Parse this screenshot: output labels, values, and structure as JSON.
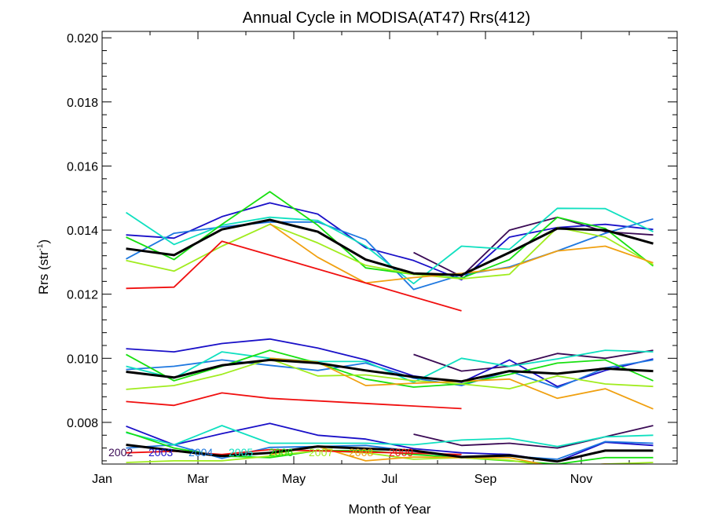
{
  "chart_data": {
    "type": "line",
    "title": "Annual Cycle in MODISA(AT47) Rrs(412)",
    "xlabel": "Month of Year",
    "ylabel_main": "Rrs (str",
    "ylabel_sup": "-1",
    "ylabel_close": ")",
    "xlim": [
      0,
      12
    ],
    "ylim": [
      0.0067,
      0.0202
    ],
    "x_ticks": [
      {
        "x": 0,
        "label": "Jan"
      },
      {
        "x": 2,
        "label": "Mar"
      },
      {
        "x": 4,
        "label": "May"
      },
      {
        "x": 6,
        "label": "Jul"
      },
      {
        "x": 8,
        "label": "Sep"
      },
      {
        "x": 10,
        "label": "Nov"
      }
    ],
    "y_ticks": [
      {
        "y": 0.008,
        "label": "0.008"
      },
      {
        "y": 0.01,
        "label": "0.010"
      },
      {
        "y": 0.012,
        "label": "0.012"
      },
      {
        "y": 0.014,
        "label": "0.014"
      },
      {
        "y": 0.016,
        "label": "0.016"
      },
      {
        "y": 0.018,
        "label": "0.018"
      },
      {
        "y": 0.02,
        "label": "0.020"
      }
    ],
    "x": [
      0.5,
      1.5,
      2.5,
      3.5,
      4.5,
      5.5,
      6.5,
      7.5,
      8.5,
      9.5,
      10.5,
      11.5
    ],
    "legend_placement": "bottom-left, inside plot",
    "series": [
      {
        "name": "2002",
        "color": "#3a0a55",
        "groups": [
          [
            null,
            null,
            null,
            null,
            null,
            null,
            0.0133,
            0.01255,
            0.014,
            0.0144,
            0.01395,
            0.01385
          ],
          [
            null,
            null,
            null,
            null,
            null,
            null,
            0.01012,
            0.0096,
            0.00975,
            0.01015,
            0.01,
            0.01025
          ],
          [
            null,
            null,
            null,
            null,
            null,
            null,
            0.00763,
            0.00728,
            0.00735,
            0.0072,
            0.00755,
            0.0079
          ]
        ]
      },
      {
        "name": "2003",
        "color": "#1a10c8",
        "groups": [
          [
            0.01385,
            0.01375,
            0.01442,
            0.01485,
            0.0145,
            0.01345,
            0.01305,
            0.01245,
            0.01378,
            0.01408,
            0.01418,
            0.01402
          ],
          [
            0.0103,
            0.0102,
            0.01046,
            0.0106,
            0.01032,
            0.00995,
            0.00945,
            0.00925,
            0.00995,
            0.00912,
            0.00962,
            0.00998
          ],
          [
            0.00788,
            0.0073,
            0.00765,
            0.00797,
            0.0076,
            0.00748,
            0.00718,
            0.00705,
            0.007,
            0.00677,
            0.00738,
            0.00728
          ]
        ]
      },
      {
        "name": "2004",
        "color": "#1e78e0",
        "groups": [
          [
            0.0131,
            0.0139,
            0.0141,
            0.01425,
            0.01425,
            0.0137,
            0.01215,
            0.0126,
            0.01285,
            0.01335,
            0.0139,
            0.01435
          ],
          [
            0.00965,
            0.00975,
            0.00995,
            0.00978,
            0.00962,
            0.00985,
            0.00938,
            0.00915,
            0.0096,
            0.00908,
            0.0097,
            0.00995
          ],
          [
            0.0072,
            0.0073,
            0.00688,
            0.00722,
            0.00725,
            0.00728,
            0.0071,
            0.0069,
            0.00695,
            0.00685,
            0.0074,
            0.00735
          ]
        ]
      },
      {
        "name": "2005",
        "color": "#10e0c0",
        "groups": [
          [
            0.01455,
            0.01355,
            0.01415,
            0.0144,
            0.0143,
            0.0135,
            0.01233,
            0.0135,
            0.0134,
            0.01468,
            0.01467,
            0.01395
          ],
          [
            0.00975,
            0.00938,
            0.0102,
            0.01,
            0.0099,
            0.0099,
            0.00925,
            0.01,
            0.00975,
            0.00998,
            0.01025,
            0.0102
          ],
          [
            0.00768,
            0.0073,
            0.0079,
            0.00735,
            0.00735,
            0.00735,
            0.0073,
            0.00745,
            0.0075,
            0.00725,
            0.00755,
            0.0076
          ]
        ]
      },
      {
        "name": "2006",
        "color": "#18e010",
        "groups": [
          [
            0.01378,
            0.01308,
            0.01418,
            0.0152,
            0.01415,
            0.01282,
            0.01262,
            0.0125,
            0.01308,
            0.0144,
            0.01405,
            0.01288
          ],
          [
            0.01012,
            0.0093,
            0.00975,
            0.01025,
            0.00985,
            0.00935,
            0.0091,
            0.0092,
            0.0095,
            0.00985,
            0.00995,
            0.0093
          ],
          [
            0.0077,
            0.0072,
            0.00695,
            0.0069,
            0.00712,
            0.00712,
            0.007,
            0.0069,
            0.0068,
            0.0067,
            0.0069,
            0.0069
          ]
        ]
      },
      {
        "name": "2007",
        "color": "#a0ec1e",
        "groups": [
          [
            0.01305,
            0.01272,
            0.0135,
            0.01418,
            0.0136,
            0.0129,
            0.01262,
            0.01248,
            0.01262,
            0.01408,
            0.01378,
            0.01292
          ],
          [
            0.00903,
            0.00915,
            0.0095,
            0.00998,
            0.00945,
            0.00948,
            0.0093,
            0.0092,
            0.00905,
            0.00945,
            0.0092,
            0.00912
          ],
          [
            0.00675,
            0.0068,
            0.0068,
            0.00695,
            0.00712,
            0.00705,
            0.00685,
            0.0069,
            0.00682,
            0.0066,
            0.0067,
            0.00675
          ]
        ]
      },
      {
        "name": "2008",
        "color": "#f0a010",
        "groups": [
          [
            null,
            null,
            null,
            0.0142,
            0.01315,
            0.01235,
            0.01252,
            0.01265,
            0.01282,
            0.01335,
            0.0135,
            0.01298
          ],
          [
            null,
            null,
            null,
            0.01,
            0.00988,
            0.00915,
            0.00922,
            0.00928,
            0.00935,
            0.00875,
            0.00905,
            0.00842
          ],
          [
            null,
            null,
            null,
            0.007,
            0.00725,
            0.0068,
            0.00692,
            0.0069,
            0.0069,
            0.0066,
            0.0067,
            0.0066
          ]
        ]
      },
      {
        "name": "2009",
        "color": "#f01010",
        "groups": [
          [
            0.01218,
            0.01222,
            0.01365,
            0.01322,
            null,
            null,
            null,
            0.01148,
            null,
            null,
            null,
            null
          ],
          [
            0.00865,
            0.00853,
            0.00892,
            0.00875,
            null,
            null,
            null,
            0.00843,
            null,
            null,
            null,
            null
          ],
          [
            0.00705,
            0.0071,
            0.007,
            0.00715,
            null,
            null,
            null,
            0.007,
            null,
            null,
            null,
            null
          ]
        ]
      },
      {
        "name": "",
        "color": "#000000",
        "width": 3,
        "groups": [
          [
            0.01342,
            0.01322,
            0.01402,
            0.01432,
            0.01395,
            0.01308,
            0.01265,
            0.0126,
            0.0133,
            0.01405,
            0.014,
            0.01358
          ],
          [
            0.00958,
            0.0094,
            0.00978,
            0.00995,
            0.00985,
            0.00962,
            0.00942,
            0.00928,
            0.0096,
            0.00952,
            0.00968,
            0.0096
          ],
          [
            0.0073,
            0.00712,
            0.00695,
            0.00705,
            0.00725,
            0.00718,
            0.00712,
            0.00692,
            0.00697,
            0.00678,
            0.00712,
            0.00712
          ]
        ]
      }
    ]
  }
}
